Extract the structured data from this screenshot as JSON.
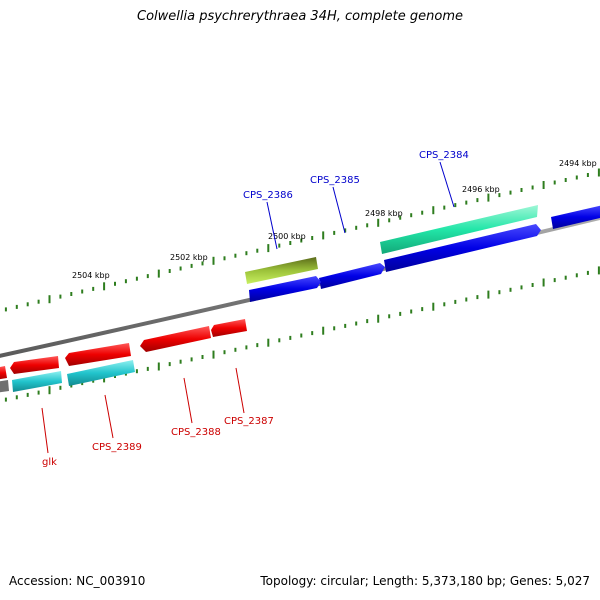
{
  "title": "Colwellia psychrerythraea 34H, complete genome",
  "footer": {
    "accession": "Accession: NC_003910",
    "topology": "Topology: circular; Length: 5,373,180 bp; Genes: 5,027"
  },
  "colors": {
    "backbone": "#808080",
    "tick": "#2e7d1e",
    "forward_cds": "#0000e6",
    "reverse_cds": "#ee0000",
    "forward_rna": "#22e6a8",
    "reverse_rna": "#22c4cc",
    "olive_feature": "#7ab02a",
    "forward_label": "#0000cc",
    "reverse_label": "#cc0000"
  },
  "scale_labels": [
    "2494 kbp",
    "2496 kbp",
    "2498 kbp",
    "2500 kbp",
    "2502 kbp",
    "2504 kbp"
  ],
  "gene_labels": {
    "forward": [
      "CPS_2384",
      "CPS_2385",
      "CPS_2386"
    ],
    "reverse": [
      "CPS_2387",
      "CPS_2388",
      "CPS_2389",
      "glk"
    ]
  }
}
